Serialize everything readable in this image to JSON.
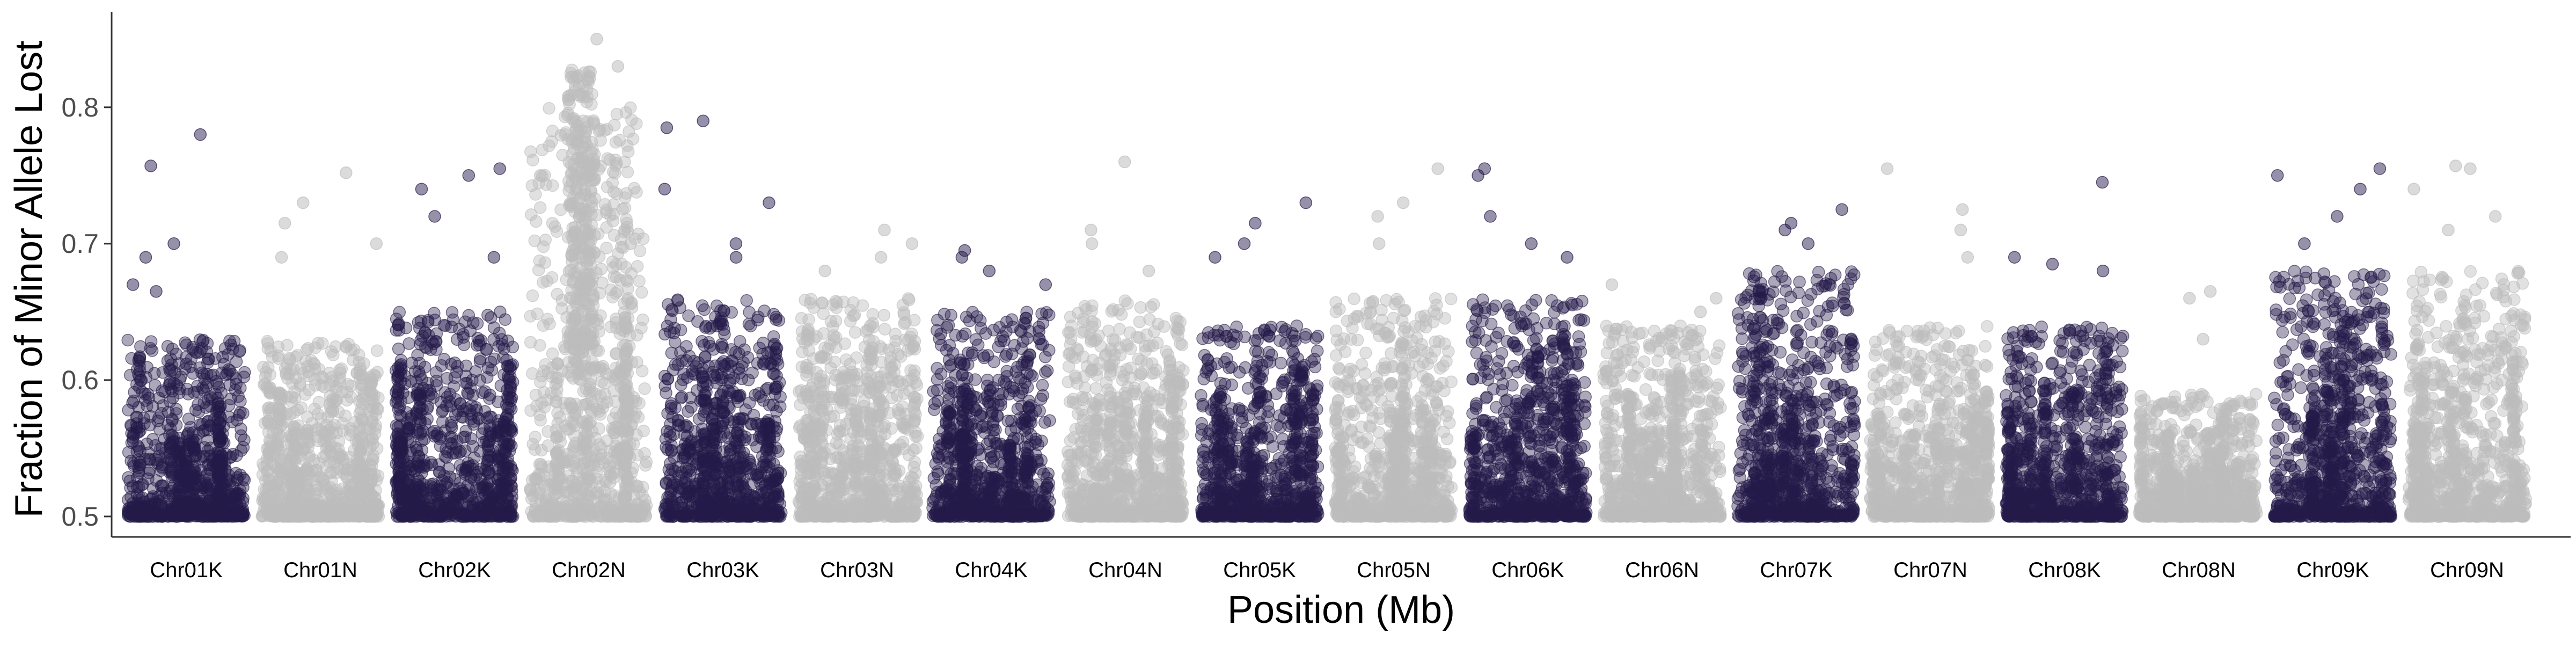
{
  "chart_data": {
    "type": "scatter",
    "title": "",
    "xlabel": "Position (Mb)",
    "ylabel": "Fraction of Minor Allele Lost",
    "ylim": [
      0.485,
      0.87
    ],
    "yticks": [
      0.5,
      0.6,
      0.7,
      0.8
    ],
    "grid": false,
    "legend": "none",
    "colors": {
      "K": "#241a4a",
      "N": "#bdbdbd",
      "axis": "#333333",
      "text": "#000000"
    },
    "categories": [
      "Chr01K",
      "Chr01N",
      "Chr02K",
      "Chr02N",
      "Chr03K",
      "Chr03N",
      "Chr04K",
      "Chr04N",
      "Chr05K",
      "Chr05N",
      "Chr06K",
      "Chr06N",
      "Chr07K",
      "Chr07N",
      "Chr08K",
      "Chr08N",
      "Chr09K",
      "Chr09N"
    ],
    "series": [
      {
        "category": "Chr01K",
        "group": "K",
        "baseline": 0.5,
        "typical_max": 0.63,
        "outliers": [
          0.78,
          0.757,
          0.7,
          0.69,
          0.67,
          0.665
        ]
      },
      {
        "category": "Chr01N",
        "group": "N",
        "baseline": 0.5,
        "typical_max": 0.63,
        "outliers": [
          0.752,
          0.73,
          0.715,
          0.7,
          0.69
        ]
      },
      {
        "category": "Chr02K",
        "group": "K",
        "baseline": 0.5,
        "typical_max": 0.65,
        "outliers": [
          0.755,
          0.75,
          0.74,
          0.72,
          0.69
        ]
      },
      {
        "category": "Chr02N",
        "group": "N",
        "baseline": 0.5,
        "typical_max": 0.8,
        "outliers": [
          0.85,
          0.83,
          0.82,
          0.75,
          0.72,
          0.7
        ]
      },
      {
        "category": "Chr03K",
        "group": "K",
        "baseline": 0.5,
        "typical_max": 0.66,
        "outliers": [
          0.79,
          0.785,
          0.74,
          0.73,
          0.7,
          0.69
        ]
      },
      {
        "category": "Chr03N",
        "group": "N",
        "baseline": 0.5,
        "typical_max": 0.66,
        "outliers": [
          0.71,
          0.7,
          0.69,
          0.68
        ]
      },
      {
        "category": "Chr04K",
        "group": "K",
        "baseline": 0.5,
        "typical_max": 0.65,
        "outliers": [
          0.695,
          0.69,
          0.68,
          0.67
        ]
      },
      {
        "category": "Chr04N",
        "group": "N",
        "baseline": 0.5,
        "typical_max": 0.66,
        "outliers": [
          0.76,
          0.71,
          0.7,
          0.68
        ]
      },
      {
        "category": "Chr05K",
        "group": "K",
        "baseline": 0.5,
        "typical_max": 0.64,
        "outliers": [
          0.73,
          0.715,
          0.7,
          0.69
        ]
      },
      {
        "category": "Chr05N",
        "group": "N",
        "baseline": 0.5,
        "typical_max": 0.66,
        "outliers": [
          0.755,
          0.73,
          0.72,
          0.7
        ]
      },
      {
        "category": "Chr06K",
        "group": "K",
        "baseline": 0.5,
        "typical_max": 0.66,
        "outliers": [
          0.755,
          0.75,
          0.72,
          0.7,
          0.69
        ]
      },
      {
        "category": "Chr06N",
        "group": "N",
        "baseline": 0.5,
        "typical_max": 0.64,
        "outliers": [
          0.67,
          0.66,
          0.65
        ]
      },
      {
        "category": "Chr07K",
        "group": "K",
        "baseline": 0.5,
        "typical_max": 0.68,
        "outliers": [
          0.725,
          0.715,
          0.71,
          0.7
        ]
      },
      {
        "category": "Chr07N",
        "group": "N",
        "baseline": 0.5,
        "typical_max": 0.64,
        "outliers": [
          0.755,
          0.725,
          0.71,
          0.69
        ]
      },
      {
        "category": "Chr08K",
        "group": "K",
        "baseline": 0.5,
        "typical_max": 0.64,
        "outliers": [
          0.745,
          0.69,
          0.685,
          0.68
        ]
      },
      {
        "category": "Chr08N",
        "group": "N",
        "baseline": 0.5,
        "typical_max": 0.59,
        "outliers": [
          0.665,
          0.66,
          0.63
        ]
      },
      {
        "category": "Chr09K",
        "group": "K",
        "baseline": 0.5,
        "typical_max": 0.68,
        "outliers": [
          0.755,
          0.75,
          0.74,
          0.72,
          0.7
        ]
      },
      {
        "category": "Chr09N",
        "group": "N",
        "baseline": 0.5,
        "typical_max": 0.68,
        "outliers": [
          0.757,
          0.755,
          0.74,
          0.72,
          0.71
        ]
      }
    ]
  }
}
